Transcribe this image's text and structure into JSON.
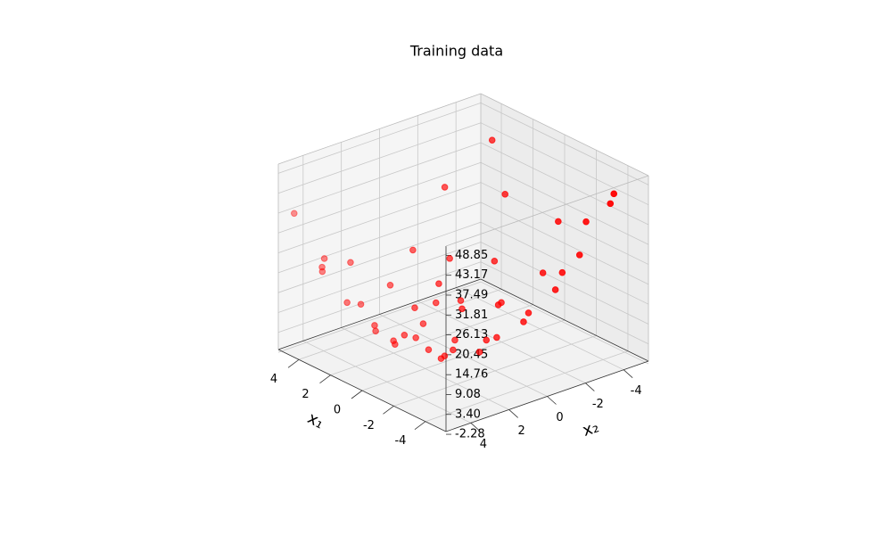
{
  "chart_data": {
    "type": "scatter3d",
    "title": "Training data",
    "xlabel": "x₁",
    "ylabel": "x₂",
    "xlim": [
      -5.3,
      5.3
    ],
    "ylim": [
      -5.3,
      5.3
    ],
    "zlim": [
      -1.5,
      51.5
    ],
    "xticks": [
      -4,
      -2,
      0,
      2,
      4
    ],
    "yticks": [
      -4,
      -2,
      0,
      2,
      4
    ],
    "zticks": [
      -2.28,
      {
        "value": 3.4,
        "label": "3.40"
      },
      9.08,
      14.76,
      20.45,
      26.13,
      31.81,
      37.49,
      43.17,
      48.85
    ],
    "grid": true,
    "color": "#ff0000",
    "x": [
      4.2,
      3.5,
      4.6,
      3.1,
      2.4,
      1.2,
      0.3,
      -1.1,
      -2.6,
      -3.9,
      -4.5,
      -2.0,
      -0.4,
      1.8,
      3.9,
      2.7,
      0.9,
      -1.5,
      -3.2,
      -4.8,
      -3.6,
      -4.2,
      -4.7,
      -2.2,
      -0.8,
      -1.7,
      0.5,
      1.9,
      2.8,
      4.1,
      4.8,
      3.4,
      4.4,
      0.1,
      -0.9,
      1.4,
      -2.9,
      -1.3,
      2.1,
      -3.4,
      0.7,
      -0.2,
      3.0,
      -4.0,
      4.9,
      2.3
    ],
    "y": [
      3.8,
      4.5,
      2.1,
      2.8,
      4.1,
      3.6,
      4.4,
      4.0,
      4.7,
      3.3,
      1.9,
      2.2,
      1.5,
      1.0,
      0.6,
      -0.8,
      -0.3,
      0.4,
      -0.5,
      -1.2,
      -3.1,
      -4.4,
      -3.8,
      -4.6,
      -3.5,
      -2.0,
      -2.4,
      -3.2,
      -4.5,
      -4.9,
      -3.0,
      -2.1,
      -1.0,
      0.9,
      -1.0,
      2.5,
      1.2,
      2.9,
      -1.6,
      -2.0,
      3.0,
      -4.8,
      4.9,
      4.6,
      4.8,
      0.2
    ],
    "z": [
      24.08,
      24.5,
      18.87,
      11.55,
      16.07,
      9.6,
      14.75,
      14.31,
      26.75,
      26.7,
      26.46,
      8.64,
      1.31,
      1.44,
      11.07,
      6.03,
      0.3,
      3.51,
      14.19,
      30.48,
      29.27,
      45.6,
      45.03,
      32.8,
      17.19,
      10.59,
      7.91,
      15.15,
      29.79,
      41.62,
      30.24,
      14.67,
      16.96,
      -0.18,
      3.71,
      4.31,
      11.55,
      8.5,
      6.47,
      20.96,
      5.79,
      28.08,
      25.11,
      36.56,
      37.35,
      2.83
    ]
  }
}
